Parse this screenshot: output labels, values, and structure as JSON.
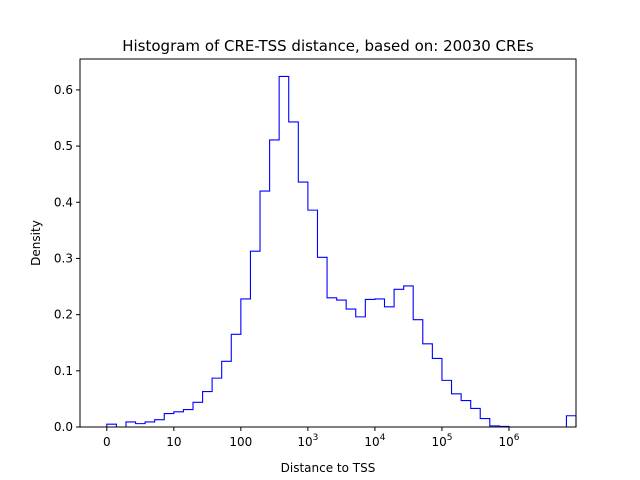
{
  "chart_data": {
    "type": "histogram",
    "title": "Histogram of CRE-TSS distance, based on: 20030 CREs",
    "xlabel": "Distance to TSS",
    "ylabel": "Density",
    "x_scale": "log10(1 + distance), step histogram",
    "xlim": [
      -0.4,
      7.0
    ],
    "ylim": [
      0,
      0.655
    ],
    "grid": false,
    "legend": "none",
    "colors": {
      "series": "#0000ff",
      "axis": "#000000",
      "background": "#ffffff"
    },
    "x_ticks": [
      {
        "pos": 0,
        "base": "0",
        "exp": ""
      },
      {
        "pos": 1,
        "base": "10",
        "exp": ""
      },
      {
        "pos": 2,
        "base": "100",
        "exp": ""
      },
      {
        "pos": 3,
        "base": "10",
        "exp": "3"
      },
      {
        "pos": 4,
        "base": "10",
        "exp": "4"
      },
      {
        "pos": 5,
        "base": "10",
        "exp": "5"
      },
      {
        "pos": 6,
        "base": "10",
        "exp": "6"
      }
    ],
    "y_ticks": [
      {
        "value": 0.0,
        "label": "0.0"
      },
      {
        "value": 0.1,
        "label": "0.1"
      },
      {
        "value": 0.2,
        "label": "0.2"
      },
      {
        "value": 0.3,
        "label": "0.3"
      },
      {
        "value": 0.4,
        "label": "0.4"
      },
      {
        "value": 0.5,
        "label": "0.5"
      },
      {
        "value": 0.6,
        "label": "0.6"
      }
    ],
    "bin_edges": [
      0.0,
      0.143,
      0.286,
      0.429,
      0.571,
      0.714,
      0.857,
      1.0,
      1.143,
      1.286,
      1.429,
      1.571,
      1.714,
      1.857,
      2.0,
      2.143,
      2.286,
      2.429,
      2.571,
      2.714,
      2.857,
      3.0,
      3.143,
      3.286,
      3.429,
      3.571,
      3.714,
      3.857,
      4.0,
      4.143,
      4.286,
      4.429,
      4.571,
      4.714,
      4.857,
      5.0,
      5.143,
      5.286,
      5.429,
      5.571,
      5.714,
      5.857,
      6.0,
      6.143,
      6.286,
      6.429,
      6.571,
      6.714,
      6.857,
      7.0
    ],
    "densities": [
      0.005,
      0.0,
      0.009,
      0.006,
      0.009,
      0.013,
      0.024,
      0.027,
      0.031,
      0.044,
      0.063,
      0.087,
      0.117,
      0.165,
      0.228,
      0.313,
      0.42,
      0.511,
      0.624,
      0.543,
      0.436,
      0.386,
      0.302,
      0.23,
      0.226,
      0.21,
      0.196,
      0.227,
      0.228,
      0.214,
      0.245,
      0.251,
      0.191,
      0.148,
      0.122,
      0.083,
      0.059,
      0.047,
      0.033,
      0.015,
      0.002,
      0.001,
      0.0,
      0.0,
      0.0,
      0.0,
      0.0,
      0.0,
      0.02
    ]
  }
}
